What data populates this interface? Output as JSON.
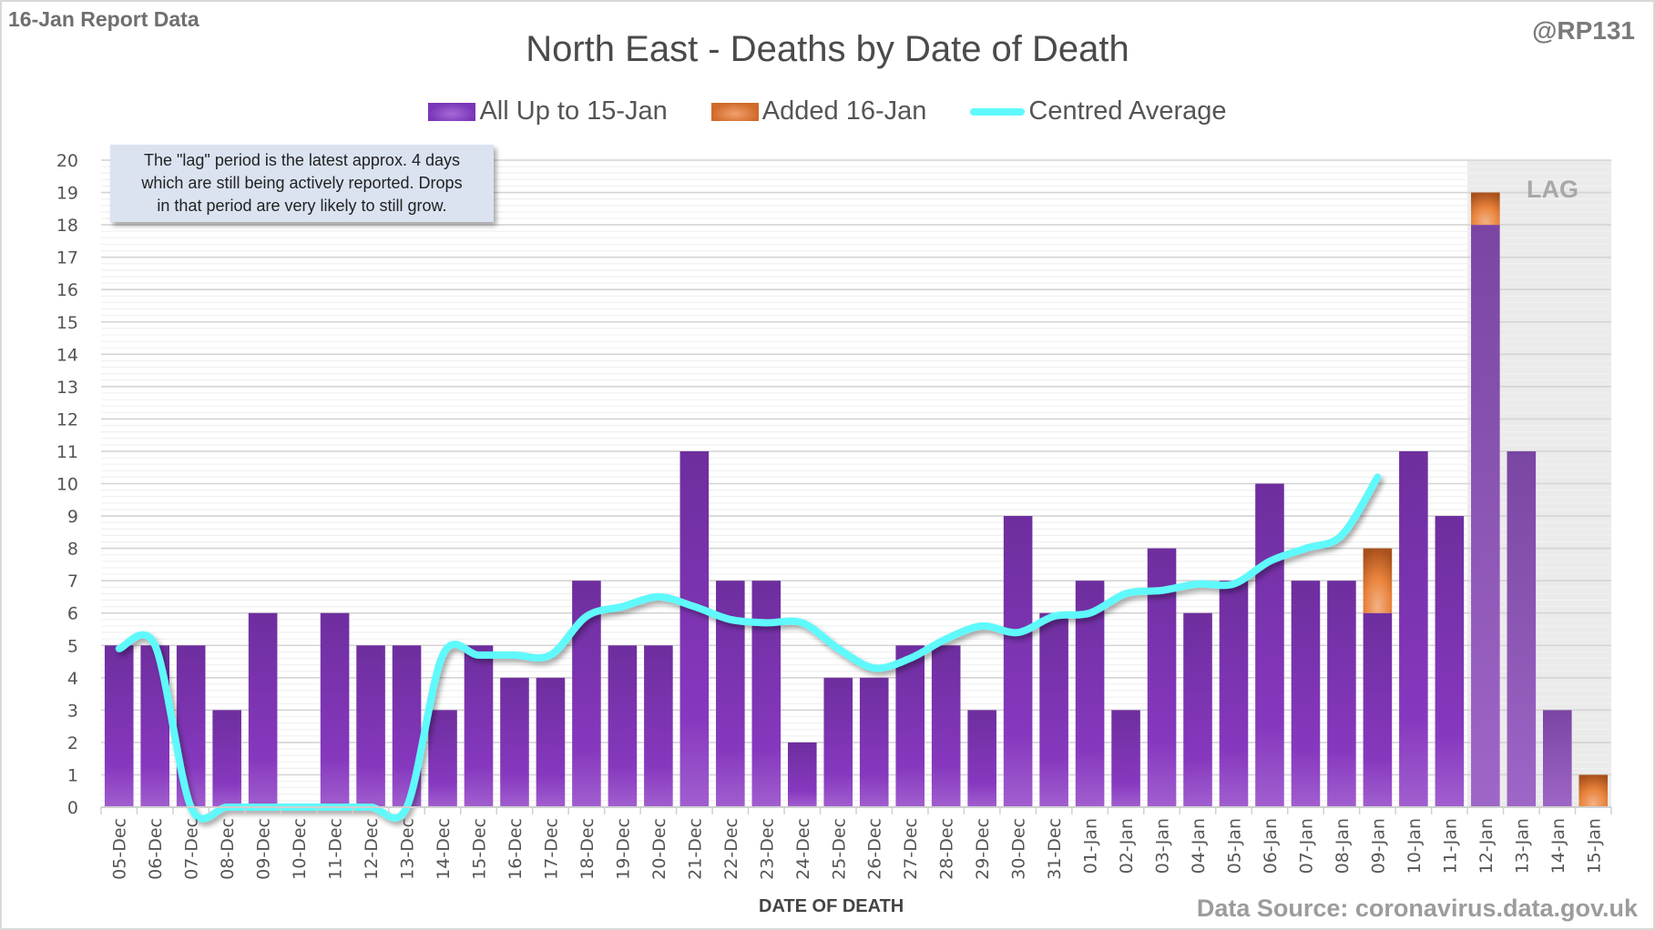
{
  "header": {
    "report_label": "16-Jan Report Data",
    "handle": "@RP131",
    "title": "North East - Deaths by Date of Death"
  },
  "legend": {
    "items": [
      {
        "label": "All Up to 15-Jan",
        "swatch": "purple-bar"
      },
      {
        "label": "Added 16-Jan",
        "swatch": "orange-bar"
      },
      {
        "label": "Centred Average",
        "swatch": "cyan-line"
      }
    ]
  },
  "note": {
    "line1": "The \"lag\" period is the latest approx. 4 days",
    "line2": "which are still being actively reported.  Drops",
    "line3": "in that period are very likely to still grow."
  },
  "lag_label": "LAG",
  "footer": {
    "xlabel": "DATE OF DEATH",
    "source": "Data Source: coronavirus.data.gov.uk"
  },
  "colors": {
    "base_bar": "#7b35b8",
    "added_bar": "#e07a35",
    "average_line": "#5ff9fb",
    "lag_shade": "#ebebeb"
  },
  "chart_data": {
    "type": "bar",
    "title": "North East - Deaths by Date of Death",
    "xlabel": "DATE OF DEATH",
    "ylabel": "",
    "ylim": [
      0,
      20
    ],
    "yticks": [
      0,
      1,
      2,
      3,
      4,
      5,
      6,
      7,
      8,
      9,
      10,
      11,
      12,
      13,
      14,
      15,
      16,
      17,
      18,
      19,
      20
    ],
    "grid": true,
    "stacked": true,
    "legend_position": "top-center",
    "lag_period": [
      "12-Jan",
      "15-Jan"
    ],
    "categories": [
      "05-Dec",
      "06-Dec",
      "07-Dec",
      "08-Dec",
      "09-Dec",
      "10-Dec",
      "11-Dec",
      "12-Dec",
      "13-Dec",
      "14-Dec",
      "15-Dec",
      "16-Dec",
      "17-Dec",
      "18-Dec",
      "19-Dec",
      "20-Dec",
      "21-Dec",
      "22-Dec",
      "23-Dec",
      "24-Dec",
      "25-Dec",
      "26-Dec",
      "27-Dec",
      "28-Dec",
      "29-Dec",
      "30-Dec",
      "31-Dec",
      "01-Jan",
      "02-Jan",
      "03-Jan",
      "04-Jan",
      "05-Jan",
      "06-Jan",
      "07-Jan",
      "08-Jan",
      "09-Jan",
      "10-Jan",
      "11-Jan",
      "12-Jan",
      "13-Jan",
      "14-Jan",
      "15-Jan"
    ],
    "series": [
      {
        "name": "All Up to 15-Jan",
        "type": "bar",
        "values": [
          5,
          5,
          5,
          3,
          6,
          0,
          6,
          5,
          5,
          3,
          5,
          4,
          4,
          7,
          5,
          5,
          11,
          7,
          7,
          2,
          4,
          4,
          5,
          5,
          3,
          9,
          6,
          7,
          3,
          8,
          6,
          7,
          10,
          7,
          7,
          6,
          11,
          9,
          18,
          11,
          3,
          0
        ]
      },
      {
        "name": "Added 16-Jan",
        "type": "bar",
        "values": [
          0,
          0,
          0,
          0,
          0,
          0,
          0,
          0,
          0,
          0,
          0,
          0,
          0,
          0,
          0,
          0,
          0,
          0,
          0,
          0,
          0,
          0,
          0,
          0,
          0,
          0,
          0,
          0,
          0,
          0,
          0,
          0,
          0,
          0,
          0,
          2,
          0,
          0,
          1,
          0,
          0,
          1
        ]
      },
      {
        "name": "Centred Average",
        "type": "line",
        "values": [
          4.9,
          5.0,
          0,
          0,
          0,
          0,
          0,
          0,
          0,
          4.7,
          4.7,
          4.7,
          4.7,
          5.9,
          6.2,
          6.5,
          6.2,
          5.8,
          5.7,
          5.7,
          4.9,
          4.3,
          4.6,
          5.2,
          5.6,
          5.4,
          5.9,
          6.0,
          6.6,
          6.7,
          6.9,
          6.9,
          7.6,
          8.0,
          8.4,
          10.2,
          null,
          null,
          null,
          null,
          null,
          null
        ]
      }
    ]
  }
}
